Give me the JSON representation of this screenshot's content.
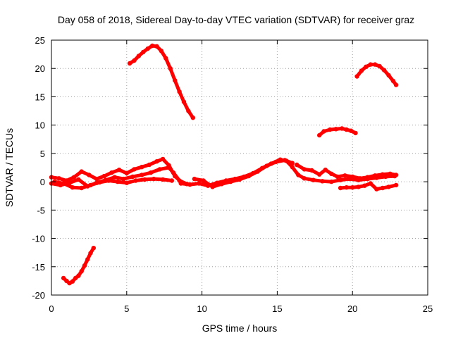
{
  "chart_data": {
    "type": "scatter",
    "title": "Day 058 of 2018, Sidereal Day-to-day VTEC variation (SDTVAR) for receiver graz",
    "xlabel": "GPS time / hours",
    "ylabel": "SDTVAR / TECUs",
    "xlim": [
      0,
      25
    ],
    "ylim": [
      -20,
      25
    ],
    "xticks": [
      0,
      5,
      10,
      15,
      20,
      25
    ],
    "yticks": [
      -20,
      -15,
      -10,
      -5,
      0,
      5,
      10,
      15,
      20,
      25
    ],
    "grid": true,
    "color": "#ff0000",
    "series": [
      {
        "name": "arc-early-low",
        "points": [
          [
            0.8,
            -17.0
          ],
          [
            1.0,
            -17.5
          ],
          [
            1.2,
            -17.9
          ],
          [
            1.4,
            -17.6
          ],
          [
            1.6,
            -17.0
          ],
          [
            1.8,
            -16.6
          ],
          [
            2.0,
            -15.8
          ],
          [
            2.2,
            -14.8
          ],
          [
            2.4,
            -13.7
          ],
          [
            2.6,
            -12.6
          ],
          [
            2.8,
            -11.7
          ]
        ]
      },
      {
        "name": "arc-morning-high",
        "points": [
          [
            5.2,
            20.9
          ],
          [
            5.5,
            21.4
          ],
          [
            5.8,
            22.2
          ],
          [
            6.1,
            22.9
          ],
          [
            6.4,
            23.5
          ],
          [
            6.7,
            24.0
          ],
          [
            7.0,
            23.9
          ],
          [
            7.3,
            23.1
          ],
          [
            7.6,
            21.8
          ],
          [
            7.9,
            20.0
          ],
          [
            8.2,
            17.9
          ],
          [
            8.5,
            15.9
          ],
          [
            8.8,
            14.1
          ],
          [
            9.1,
            12.5
          ],
          [
            9.4,
            11.3
          ]
        ]
      },
      {
        "name": "arc-evening-mid",
        "points": [
          [
            17.8,
            8.2
          ],
          [
            18.1,
            8.9
          ],
          [
            18.5,
            9.2
          ],
          [
            18.9,
            9.3
          ],
          [
            19.3,
            9.4
          ],
          [
            19.6,
            9.2
          ],
          [
            19.9,
            9.0
          ],
          [
            20.2,
            8.6
          ]
        ]
      },
      {
        "name": "arc-night-high",
        "points": [
          [
            20.3,
            18.6
          ],
          [
            20.6,
            19.6
          ],
          [
            20.9,
            20.3
          ],
          [
            21.2,
            20.7
          ],
          [
            21.5,
            20.7
          ],
          [
            21.8,
            20.4
          ],
          [
            22.1,
            19.7
          ],
          [
            22.4,
            18.8
          ],
          [
            22.7,
            17.8
          ],
          [
            22.9,
            17.1
          ]
        ]
      },
      {
        "name": "band-a",
        "points": [
          [
            0.0,
            0.8
          ],
          [
            0.5,
            0.6
          ],
          [
            1.0,
            0.2
          ],
          [
            1.5,
            0.8
          ],
          [
            2.0,
            1.8
          ],
          [
            2.5,
            1.2
          ],
          [
            3.0,
            0.5
          ],
          [
            3.5,
            1.0
          ],
          [
            4.0,
            1.6
          ],
          [
            4.5,
            2.1
          ],
          [
            5.0,
            1.5
          ],
          [
            5.5,
            2.2
          ],
          [
            6.0,
            2.6
          ],
          [
            6.5,
            3.0
          ],
          [
            7.0,
            3.6
          ],
          [
            7.4,
            4.0
          ],
          [
            7.8,
            2.9
          ],
          [
            8.2,
            1.0
          ],
          [
            8.6,
            0.0
          ]
        ]
      },
      {
        "name": "band-b",
        "points": [
          [
            0.0,
            -0.3
          ],
          [
            0.6,
            -0.6
          ],
          [
            1.2,
            -0.2
          ],
          [
            1.8,
            0.4
          ],
          [
            2.4,
            -0.8
          ],
          [
            3.0,
            -0.2
          ],
          [
            3.6,
            0.3
          ],
          [
            4.2,
            0.8
          ],
          [
            4.8,
            0.5
          ],
          [
            5.4,
            0.9
          ],
          [
            6.0,
            1.2
          ],
          [
            6.6,
            1.6
          ],
          [
            7.2,
            2.2
          ],
          [
            7.8,
            2.5
          ],
          [
            8.1,
            1.6
          ],
          [
            8.5,
            0.2
          ],
          [
            9.0,
            -0.4
          ]
        ]
      },
      {
        "name": "band-c",
        "points": [
          [
            0.2,
            0.0
          ],
          [
            0.8,
            -0.3
          ],
          [
            1.4,
            -1.0
          ],
          [
            2.0,
            -1.1
          ],
          [
            2.6,
            -0.6
          ],
          [
            3.2,
            -0.1
          ],
          [
            3.8,
            0.2
          ],
          [
            4.4,
            0.0
          ],
          [
            5.0,
            -0.2
          ],
          [
            5.6,
            0.2
          ],
          [
            6.2,
            0.4
          ],
          [
            6.8,
            0.5
          ],
          [
            7.4,
            0.4
          ],
          [
            8.0,
            0.2
          ]
        ]
      },
      {
        "name": "band-d",
        "points": [
          [
            8.6,
            -0.3
          ],
          [
            9.2,
            -0.5
          ],
          [
            9.8,
            -0.3
          ],
          [
            10.4,
            -0.7
          ],
          [
            11.0,
            -0.2
          ],
          [
            11.6,
            0.2
          ],
          [
            12.2,
            0.5
          ],
          [
            12.8,
            0.9
          ],
          [
            13.4,
            1.5
          ],
          [
            14.0,
            2.4
          ],
          [
            14.6,
            3.2
          ],
          [
            15.2,
            3.9
          ],
          [
            15.6,
            3.7
          ],
          [
            16.0,
            2.6
          ],
          [
            16.4,
            1.2
          ],
          [
            16.8,
            0.6
          ],
          [
            17.4,
            0.3
          ],
          [
            18.0,
            0.1
          ],
          [
            18.6,
            0.0
          ],
          [
            19.2,
            0.3
          ],
          [
            19.8,
            0.5
          ],
          [
            20.4,
            0.3
          ],
          [
            21.0,
            0.5
          ],
          [
            21.6,
            0.7
          ],
          [
            22.2,
            0.9
          ],
          [
            22.8,
            1.0
          ]
        ]
      },
      {
        "name": "band-e",
        "points": [
          [
            9.5,
            0.5
          ],
          [
            10.1,
            0.2
          ],
          [
            10.7,
            -0.9
          ],
          [
            11.3,
            -0.4
          ],
          [
            11.9,
            0.0
          ],
          [
            12.5,
            0.4
          ],
          [
            13.1,
            1.0
          ],
          [
            13.7,
            1.8
          ],
          [
            14.3,
            2.8
          ],
          [
            14.9,
            3.5
          ],
          [
            15.5,
            3.8
          ],
          [
            16.0,
            3.3
          ]
        ]
      },
      {
        "name": "band-f",
        "points": [
          [
            16.3,
            3.0
          ],
          [
            16.8,
            2.2
          ],
          [
            17.3,
            2.0
          ],
          [
            17.8,
            1.3
          ],
          [
            18.2,
            2.1
          ],
          [
            18.6,
            1.4
          ],
          [
            19.0,
            0.9
          ],
          [
            19.5,
            1.1
          ],
          [
            20.0,
            0.9
          ],
          [
            20.5,
            0.6
          ],
          [
            21.0,
            0.8
          ],
          [
            21.5,
            1.1
          ],
          [
            22.0,
            1.3
          ],
          [
            22.5,
            1.4
          ],
          [
            22.9,
            1.2
          ]
        ]
      },
      {
        "name": "band-g",
        "points": [
          [
            19.2,
            -1.1
          ],
          [
            19.6,
            -1.0
          ],
          [
            20.0,
            -1.0
          ],
          [
            20.4,
            -0.9
          ],
          [
            20.8,
            -0.7
          ],
          [
            21.2,
            -0.3
          ],
          [
            21.6,
            -1.3
          ],
          [
            22.0,
            -1.1
          ],
          [
            22.4,
            -0.9
          ],
          [
            22.9,
            -0.6
          ]
        ]
      }
    ]
  }
}
